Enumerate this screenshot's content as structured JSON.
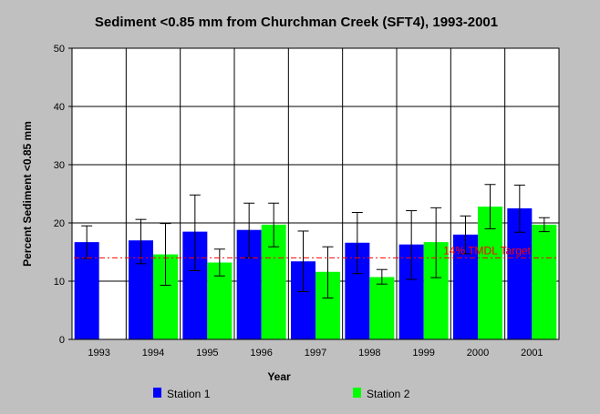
{
  "chart_data": {
    "type": "bar",
    "title": "Sediment <0.85 mm from Churchman Creek (SFT4), 1993-2001",
    "xlabel": "Year",
    "ylabel": "Percent Sediment <0.85 mm",
    "ylim": [
      0,
      50
    ],
    "yticks": [
      0,
      10,
      20,
      30,
      40,
      50
    ],
    "grid": true,
    "legend_position": "bottom",
    "categories": [
      "1993",
      "1994",
      "1995",
      "1996",
      "1997",
      "1998",
      "1999",
      "2000",
      "2001"
    ],
    "series": [
      {
        "name": "Station 1",
        "color": "#0000ff",
        "values": [
          16.7,
          17.0,
          18.5,
          18.8,
          13.4,
          16.6,
          16.3,
          18.0,
          22.5
        ],
        "error_low": [
          13.9,
          13.0,
          11.8,
          14.0,
          8.2,
          11.3,
          10.3,
          14.7,
          18.4
        ],
        "error_high": [
          19.5,
          20.6,
          24.8,
          23.4,
          18.6,
          21.8,
          22.1,
          21.2,
          26.5
        ]
      },
      {
        "name": "Station 2",
        "color": "#00ff00",
        "values": [
          null,
          14.6,
          13.2,
          19.7,
          11.6,
          10.7,
          16.7,
          22.8,
          19.7
        ],
        "error_low": [
          null,
          9.3,
          10.9,
          15.9,
          7.1,
          9.5,
          10.6,
          19.0,
          18.5
        ],
        "error_high": [
          null,
          19.9,
          15.5,
          23.4,
          15.9,
          12.0,
          22.6,
          26.6,
          20.9
        ]
      }
    ],
    "annotations": [
      {
        "text": "14% TMDL Target",
        "y": 14,
        "color": "#ff0000",
        "style": "dash-dot"
      }
    ]
  }
}
